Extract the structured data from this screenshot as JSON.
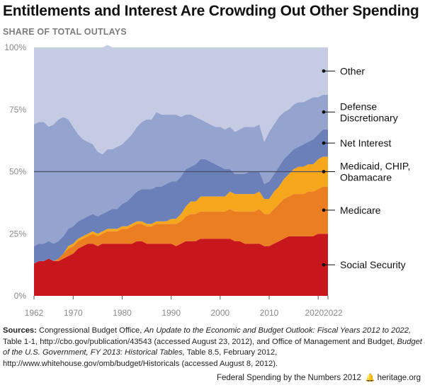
{
  "title": "Entitlements and Interest Are Crowding Out Other Spending",
  "subtitle": "SHARE OF TOTAL OUTLAYS",
  "chart_data": {
    "type": "area",
    "stacked": true,
    "x": [
      1962,
      1963,
      1964,
      1965,
      1966,
      1967,
      1968,
      1969,
      1970,
      1971,
      1972,
      1973,
      1974,
      1975,
      1976,
      1977,
      1978,
      1979,
      1980,
      1981,
      1982,
      1983,
      1984,
      1985,
      1986,
      1987,
      1988,
      1989,
      1990,
      1991,
      1992,
      1993,
      1994,
      1995,
      1996,
      1997,
      1998,
      1999,
      2000,
      2001,
      2002,
      2003,
      2004,
      2005,
      2006,
      2007,
      2008,
      2009,
      2010,
      2011,
      2012,
      2013,
      2014,
      2015,
      2016,
      2017,
      2018,
      2019,
      2020,
      2021,
      2022
    ],
    "series": [
      {
        "name": "Social Security",
        "color": "#c8161d",
        "values": [
          13,
          14,
          14,
          15,
          14,
          14,
          15,
          16,
          17,
          19,
          20,
          21,
          21,
          20,
          21,
          21,
          21,
          21,
          21,
          21,
          21,
          22,
          22,
          21,
          21,
          21,
          21,
          21,
          21,
          20,
          21,
          22,
          22,
          22,
          23,
          23,
          23,
          23,
          23,
          23,
          23,
          22,
          22,
          21,
          21,
          21,
          21,
          20,
          20,
          21,
          22,
          23,
          24,
          24,
          24,
          24,
          24,
          24,
          25,
          25,
          25
        ]
      },
      {
        "name": "Medicare",
        "color": "#ea7e21",
        "values": [
          0,
          0,
          0,
          0,
          0,
          1,
          2,
          3,
          3,
          3,
          3,
          3,
          4,
          4,
          4,
          5,
          5,
          5,
          6,
          6,
          7,
          7,
          7,
          7,
          7,
          8,
          8,
          8,
          8,
          9,
          9,
          10,
          11,
          11,
          11,
          11,
          11,
          11,
          11,
          11,
          12,
          12,
          12,
          13,
          13,
          13,
          14,
          13,
          13,
          14,
          15,
          16,
          16,
          17,
          17,
          17,
          18,
          18,
          18,
          19,
          19
        ]
      },
      {
        "name": "Medicaid, CHIP, Obamacare",
        "color": "#f6a71b",
        "values": [
          0,
          0,
          0,
          0,
          0,
          0,
          0,
          1,
          1,
          1,
          1,
          1,
          1,
          1,
          1,
          1,
          1,
          1,
          1,
          1,
          1,
          1,
          1,
          1,
          1,
          1,
          1,
          1,
          2,
          2,
          3,
          4,
          5,
          5,
          6,
          6,
          6,
          6,
          6,
          6,
          7,
          7,
          7,
          7,
          7,
          7,
          7,
          6,
          6,
          7,
          7,
          8,
          9,
          10,
          11,
          11,
          11,
          11,
          12,
          12,
          12
        ]
      },
      {
        "name": "Net Interest",
        "color": "#6b7fb8",
        "values": [
          7,
          7,
          7,
          7,
          7,
          7,
          7,
          7,
          7,
          7,
          7,
          7,
          7,
          7,
          7,
          7,
          8,
          8,
          9,
          10,
          11,
          12,
          13,
          14,
          14,
          14,
          14,
          15,
          15,
          15,
          15,
          15,
          14,
          15,
          15,
          15,
          14,
          13,
          12,
          11,
          9,
          8,
          8,
          8,
          9,
          9,
          8,
          6,
          7,
          7,
          8,
          8,
          8,
          8,
          8,
          9,
          9,
          10,
          10,
          11,
          11
        ]
      },
      {
        "name": "Defense Discretionary",
        "color": "#95a3cf",
        "values": [
          49,
          49,
          49,
          46,
          48,
          49,
          48,
          44,
          40,
          35,
          32,
          30,
          28,
          26,
          24,
          25,
          24,
          25,
          24,
          25,
          25,
          26,
          27,
          28,
          28,
          30,
          29,
          28,
          27,
          27,
          24,
          22,
          21,
          19,
          16,
          15,
          15,
          15,
          16,
          16,
          17,
          17,
          18,
          19,
          18,
          18,
          19,
          17,
          20,
          20,
          20,
          19,
          18,
          18,
          18,
          17,
          17,
          17,
          15,
          14,
          14
        ]
      },
      {
        "name": "Other",
        "color": "#c5cbe3",
        "values": [
          31,
          30,
          30,
          32,
          31,
          29,
          28,
          29,
          32,
          35,
          37,
          38,
          39,
          42,
          43,
          42,
          41,
          40,
          39,
          37,
          35,
          32,
          30,
          29,
          29,
          26,
          27,
          27,
          27,
          27,
          28,
          27,
          27,
          28,
          29,
          30,
          31,
          32,
          32,
          33,
          32,
          34,
          33,
          32,
          32,
          32,
          31,
          38,
          34,
          31,
          28,
          26,
          25,
          23,
          22,
          22,
          21,
          20,
          20,
          19,
          19
        ]
      }
    ],
    "labels": [
      "Other",
      "Defense\nDiscretionary",
      "Net Interest",
      "Medicaid, CHIP,\nObamacare",
      "Medicare",
      "Social Security"
    ],
    "ylim": [
      0,
      100
    ],
    "xlim": [
      1962,
      2022
    ],
    "yticks": [
      "0%",
      "25%",
      "50%",
      "75%",
      "100%"
    ],
    "xticks": [
      "1962",
      "1970",
      "1980",
      "1990",
      "2000",
      "2010",
      "2020",
      "2022"
    ],
    "reference_line": 50,
    "grid": false
  },
  "sources": {
    "label": "Sources:",
    "part1": " Congressional Budget Office, ",
    "italic1": "An Update to the Economic and Budget Outlook: Fiscal Years 2012 to 2022,",
    "part2": " Table 1-1, http://cbo.gov/publication/43543 (accessed August 23, 2012), and Office of Management and Budget, ",
    "italic2": "Budget of the U.S. Government, FY 2013: Historical Tables,",
    "part3": " Table 8.5, February 2012, http://www.whitehouse.gov/omb/budget/Historicals (accessed August 8, 2012)."
  },
  "footer": {
    "text": "Federal Spending by the Numbers 2012",
    "icon": "bell-icon",
    "site": "heritage.org"
  }
}
